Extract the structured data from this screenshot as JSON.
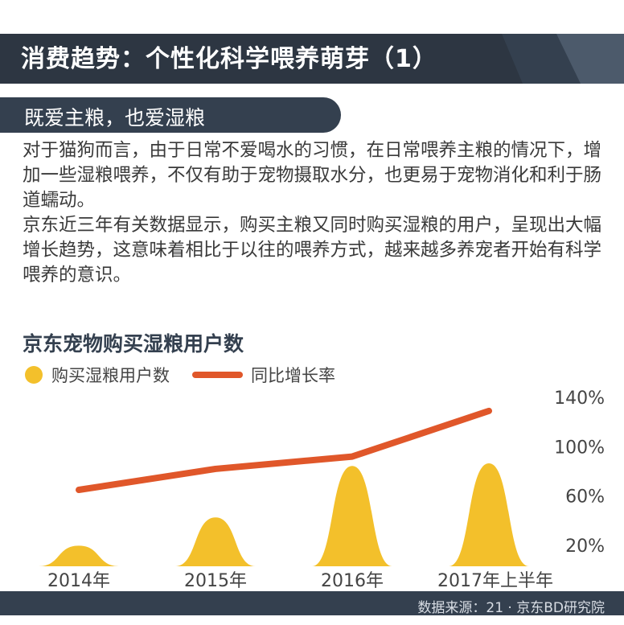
{
  "header": {
    "title": "消费趋势：个性化科学喂养萌芽（1）",
    "subtitle": "既爱主粮，也爱湿粮"
  },
  "body": {
    "paragraph1": "对于猫狗而言，由于日常不爱喝水的习惯，在日常喂养主粮的情况下，增加一些湿粮喂养，不仅有助于宠物摄取水分，也更易于宠物消化和利于肠道蠕动。",
    "paragraph2": "京东近三年有关数据显示，购买主粮又同时购买湿粮的用户，呈现出大幅增长趋势，这意味着相比于以往的喂养方式，越来越多养宠者开始有科学喂养的意识。"
  },
  "footer": {
    "source": "数据来源：21 · 京东BD研究院"
  },
  "colors": {
    "navy": "#34404f",
    "bar": "#f3c02b",
    "line": "#e0572a"
  },
  "chart_data": {
    "type": "bar",
    "title": "京东宠物购买湿粮用户数",
    "categories": [
      "2014年",
      "2015年",
      "2016年",
      "2017年上半年"
    ],
    "series": [
      {
        "name": "购买湿粮用户数",
        "kind": "bar",
        "values": [
          16,
          38,
          78,
          80
        ]
      },
      {
        "name": "同比增长率",
        "kind": "line",
        "axis": "right",
        "values": [
          65,
          82,
          92,
          129
        ]
      }
    ],
    "y_right": {
      "ticks": [
        "140%",
        "100%",
        "60%",
        "20%"
      ],
      "tick_values": [
        140,
        100,
        60,
        20
      ],
      "range": [
        20,
        140
      ]
    },
    "legend": "top-left",
    "grid": false
  }
}
